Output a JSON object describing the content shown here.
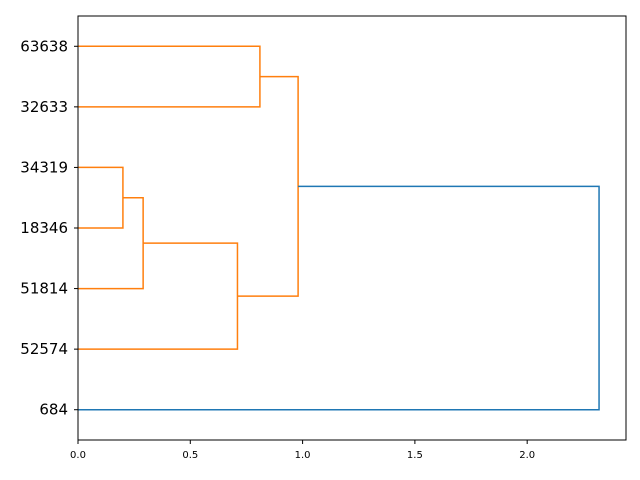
{
  "chart_data": {
    "type": "dendrogram",
    "orientation": "left",
    "leaves": [
      "684",
      "52574",
      "51814",
      "18346",
      "34319",
      "32633",
      "63638"
    ],
    "merges": [
      {
        "pair": [
          3,
          4
        ],
        "height": 0.2,
        "color": "#ff7f0e"
      },
      {
        "pair": [
          2,
          7
        ],
        "height": 0.29,
        "color": "#ff7f0e"
      },
      {
        "pair": [
          1,
          8
        ],
        "height": 0.71,
        "color": "#ff7f0e"
      },
      {
        "pair": [
          5,
          6
        ],
        "height": 0.81,
        "color": "#ff7f0e"
      },
      {
        "pair": [
          9,
          10
        ],
        "height": 0.98,
        "color": "#ff7f0e"
      },
      {
        "pair": [
          0,
          11
        ],
        "height": 2.32,
        "color": "#1f77b4"
      }
    ],
    "xlim": [
      0,
      2.44
    ],
    "xticks": [
      {
        "value": 0,
        "label": "0.0"
      },
      0.5,
      {
        "value": 1,
        "label": "1.0"
      },
      1.5,
      {
        "value": 2,
        "label": "2.0"
      }
    ]
  }
}
